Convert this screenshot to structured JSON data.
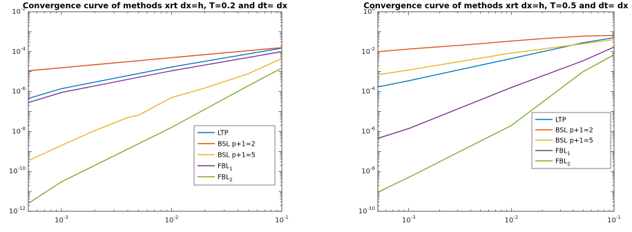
{
  "chart_data": [
    {
      "type": "line",
      "title": "Convergence curve of methods xrt dx=h, T=0.2 and dt= dx",
      "xscale": "log",
      "yscale": "log",
      "xlim": [
        0.0005,
        0.1
      ],
      "ylim": [
        1e-12,
        0.01
      ],
      "xticks": [
        {
          "base": "10",
          "exp": "-3",
          "value": 0.001
        },
        {
          "base": "10",
          "exp": "-2",
          "value": 0.01
        },
        {
          "base": "10",
          "exp": "-1",
          "value": 0.1
        }
      ],
      "yticks": [
        {
          "base": "10",
          "exp": "-12",
          "value": 1e-12
        },
        {
          "base": "10",
          "exp": "-10",
          "value": 1e-10
        },
        {
          "base": "10",
          "exp": "-8",
          "value": 1e-08
        },
        {
          "base": "10",
          "exp": "-6",
          "value": 1e-06
        },
        {
          "base": "10",
          "exp": "-4",
          "value": 0.0001
        },
        {
          "base": "10",
          "exp": "-2",
          "value": 0.01
        }
      ],
      "legend_position": "lower-right",
      "series": [
        {
          "name": "LTP",
          "sub": "",
          "color": "#0072BD",
          "x": [
            0.0005,
            0.001,
            0.01,
            0.1
          ],
          "y": [
            4.5e-07,
            1.4e-06,
            1.7e-05,
            0.00015
          ]
        },
        {
          "name": "BSL p+1=2",
          "sub": "",
          "color": "#D95319",
          "x": [
            0.0005,
            0.1
          ],
          "y": [
            1.1e-05,
            0.00016
          ]
        },
        {
          "name": "BSL p+1=5",
          "sub": "",
          "color": "#EDB120",
          "x": [
            0.0005,
            0.001,
            0.002,
            0.004,
            0.005,
            0.01,
            0.02,
            0.05,
            0.1
          ],
          "y": [
            3.5e-10,
            2e-09,
            1.1e-08,
            5e-08,
            6.5e-08,
            5e-07,
            1.5e-06,
            8e-06,
            4.5e-05
          ]
        },
        {
          "name": "FBL",
          "sub": "1",
          "color": "#7E2F8E",
          "x": [
            0.0005,
            0.001,
            0.01,
            0.1
          ],
          "y": [
            2.8e-07,
            9e-07,
            1.1e-05,
            0.0001
          ]
        },
        {
          "name": "FBL",
          "sub": "2",
          "color": "#77AC30",
          "x": [
            0.0005,
            0.001,
            0.01,
            0.05,
            0.1
          ],
          "y": [
            2.5e-12,
            3e-11,
            1.6e-08,
            2e-06,
            1.5e-05
          ]
        }
      ]
    },
    {
      "type": "line",
      "title": "Convergence curve of methods xrt dx=h, T=0.5 and dt= dx",
      "xscale": "log",
      "yscale": "log",
      "xlim": [
        0.0005,
        0.1
      ],
      "ylim": [
        1e-10,
        1
      ],
      "xticks": [
        {
          "base": "10",
          "exp": "-3",
          "value": 0.001
        },
        {
          "base": "10",
          "exp": "-2",
          "value": 0.01
        },
        {
          "base": "10",
          "exp": "-1",
          "value": 0.1
        }
      ],
      "yticks": [
        {
          "base": "10",
          "exp": "-10",
          "value": 1e-10
        },
        {
          "base": "10",
          "exp": "-8",
          "value": 1e-08
        },
        {
          "base": "10",
          "exp": "-6",
          "value": 1e-06
        },
        {
          "base": "10",
          "exp": "-4",
          "value": 0.0001
        },
        {
          "base": "10",
          "exp": "-2",
          "value": 0.01
        },
        {
          "base": "10",
          "exp": "0",
          "value": 1
        }
      ],
      "legend_position": "lower-right",
      "series": [
        {
          "name": "LTP",
          "sub": "",
          "color": "#0072BD",
          "x": [
            0.0005,
            0.001,
            0.01,
            0.05,
            0.1
          ],
          "y": [
            0.00017,
            0.00035,
            0.0045,
            0.028,
            0.05
          ]
        },
        {
          "name": "BSL p+1=2",
          "sub": "",
          "color": "#D95319",
          "x": [
            0.0005,
            0.001,
            0.005,
            0.01,
            0.02,
            0.05,
            0.1
          ],
          "y": [
            0.01,
            0.0135,
            0.025,
            0.034,
            0.045,
            0.06,
            0.065
          ]
        },
        {
          "name": "BSL p+1=5",
          "sub": "",
          "color": "#EDB120",
          "x": [
            0.0005,
            0.001,
            0.01,
            0.05,
            0.1
          ],
          "y": [
            0.0007,
            0.0012,
            0.0085,
            0.025,
            0.04
          ]
        },
        {
          "name": "FBL",
          "sub": "1",
          "color": "#7E2F8E",
          "x": [
            0.0005,
            0.001,
            0.01,
            0.05,
            0.1
          ],
          "y": [
            4.5e-07,
            1.4e-06,
            0.00016,
            0.0035,
            0.017
          ]
        },
        {
          "name": "FBL",
          "sub": "2",
          "color": "#77AC30",
          "x": [
            0.0005,
            0.001,
            0.01,
            0.05,
            0.1
          ],
          "y": [
            9e-10,
            5e-09,
            2e-06,
            0.001,
            0.007
          ]
        }
      ]
    }
  ]
}
